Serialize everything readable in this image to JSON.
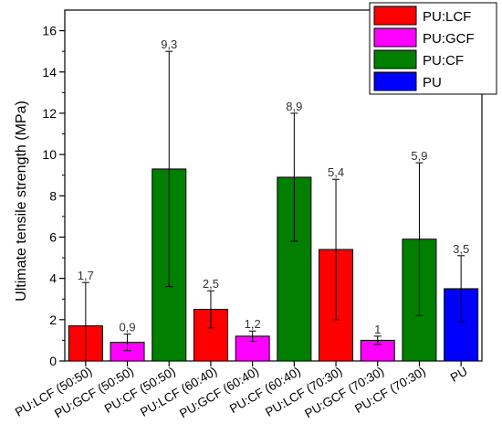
{
  "chart_data": {
    "type": "bar",
    "categories": [
      "PU:LCF (50:50)",
      "PU:GCF (50:50)",
      "PU:CF (50:50)",
      "PU:LCF (60:40)",
      "PU:GCF (60:40)",
      "PU:CF (60:40)",
      "PU:LCF (70:30)",
      "PU:GCF (70:30)",
      "PU:CF (70:30)",
      "PU"
    ],
    "values": [
      1.7,
      0.9,
      9.3,
      2.5,
      1.2,
      8.9,
      5.4,
      1.0,
      5.9,
      3.5
    ],
    "data_labels": [
      "1,7",
      "0,9",
      "9,3",
      "2,5",
      "1,2",
      "8,9",
      "5,4",
      "1",
      "5,9",
      "3,5"
    ],
    "error_bars": [
      2.1,
      0.4,
      5.7,
      0.9,
      0.25,
      3.1,
      3.4,
      0.2,
      3.7,
      1.6
    ],
    "bar_groups": [
      "PU:LCF",
      "PU:GCF",
      "PU:CF",
      "PU:LCF",
      "PU:GCF",
      "PU:CF",
      "PU:LCF",
      "PU:GCF",
      "PU:CF",
      "PU"
    ],
    "series": [
      {
        "name": "PU:LCF",
        "color": "#ff0000"
      },
      {
        "name": "PU:GCF",
        "color": "#ff00ff"
      },
      {
        "name": "PU:CF",
        "color": "#007f00"
      },
      {
        "name": "PU",
        "color": "#0000ff"
      }
    ],
    "title": "",
    "xlabel": "",
    "ylabel": "Ultimate tensile strength (MPa)",
    "ylim": [
      0,
      17
    ],
    "yticks": [
      0,
      2,
      4,
      6,
      8,
      10,
      12,
      14,
      16
    ],
    "legend_position": "top-right",
    "grid": false
  }
}
